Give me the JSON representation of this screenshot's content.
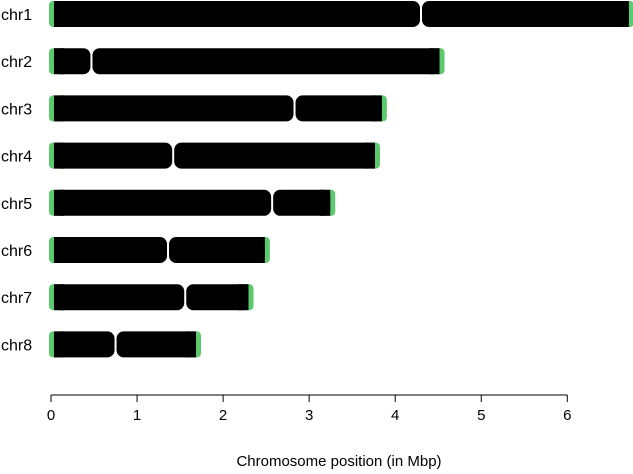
{
  "chart_data": {
    "type": "bar",
    "xlabel": "Chromosome position (in Mbp)",
    "xlim": [
      0,
      6.8
    ],
    "xticks": [
      "0",
      "1",
      "2",
      "3",
      "4",
      "5",
      "6"
    ],
    "telomere_color": "#5cc96e",
    "arm_color": "#000000",
    "chromosomes": [
      {
        "name": "chr1",
        "length": 6.75,
        "centromere": 4.3
      },
      {
        "name": "chr2",
        "length": 4.55,
        "centromere": 0.47
      },
      {
        "name": "chr3",
        "length": 3.88,
        "centromere": 2.83
      },
      {
        "name": "chr4",
        "length": 3.8,
        "centromere": 1.42
      },
      {
        "name": "chr5",
        "length": 3.28,
        "centromere": 2.57
      },
      {
        "name": "chr6",
        "length": 2.52,
        "centromere": 1.36
      },
      {
        "name": "chr7",
        "length": 2.33,
        "centromere": 1.56
      },
      {
        "name": "chr8",
        "length": 1.72,
        "centromere": 0.75
      }
    ]
  }
}
